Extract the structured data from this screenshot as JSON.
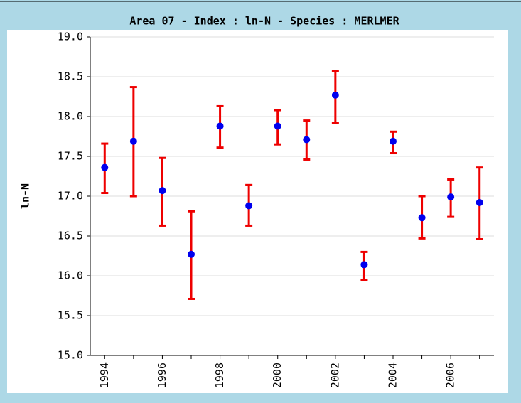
{
  "chart_data": {
    "type": "errorbar",
    "title": "Area 07 - Index : ln-N - Species : MERLMER",
    "y_label": "ln-N",
    "x": [
      1994,
      1995,
      1996,
      1997,
      1998,
      1999,
      2000,
      2001,
      2002,
      2003,
      2004,
      2005,
      2006,
      2007
    ],
    "series": [
      {
        "name": "ln-N",
        "color": "#0000ee",
        "error_color": "#ee0000",
        "values": [
          17.36,
          17.69,
          17.07,
          16.27,
          17.88,
          16.88,
          17.88,
          17.71,
          18.27,
          16.14,
          17.69,
          16.73,
          16.99,
          16.92
        ],
        "lower": [
          17.04,
          17.0,
          16.63,
          15.71,
          17.61,
          16.63,
          17.65,
          17.46,
          17.92,
          15.95,
          17.54,
          16.47,
          16.74,
          16.46
        ],
        "upper": [
          17.66,
          18.37,
          17.48,
          16.81,
          18.13,
          17.14,
          18.08,
          17.95,
          18.57,
          16.3,
          17.81,
          17.0,
          17.21,
          17.36
        ]
      }
    ],
    "xlim": [
      1993.5,
      2007.5
    ],
    "xticks": [
      1994,
      1996,
      1998,
      2000,
      2002,
      2004,
      2006
    ],
    "ylim": [
      15.0,
      19.0
    ],
    "yticks": [
      {
        "value": 15.0,
        "label": "15.0"
      },
      {
        "value": 15.5,
        "label": "15.5"
      },
      {
        "value": 16.0,
        "label": "16.0"
      },
      {
        "value": 16.5,
        "label": "16.5"
      },
      {
        "value": 17.0,
        "label": "17.0"
      },
      {
        "value": 17.5,
        "label": "17.5"
      },
      {
        "value": 18.0,
        "label": "18.0"
      },
      {
        "value": 18.5,
        "label": "18.5"
      },
      {
        "value": 19.0,
        "label": "19.0"
      }
    ],
    "grid": true
  }
}
